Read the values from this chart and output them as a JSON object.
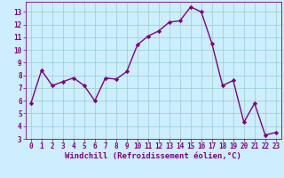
{
  "x": [
    0,
    1,
    2,
    3,
    4,
    5,
    6,
    7,
    8,
    9,
    10,
    11,
    12,
    13,
    14,
    15,
    16,
    17,
    18,
    19,
    20,
    21,
    22,
    23
  ],
  "y": [
    5.8,
    8.4,
    7.2,
    7.5,
    7.8,
    7.2,
    6.0,
    7.8,
    7.7,
    8.3,
    10.4,
    11.1,
    11.5,
    12.2,
    12.3,
    13.4,
    13.0,
    10.5,
    7.2,
    7.6,
    4.3,
    5.8,
    3.3,
    3.5
  ],
  "line_color": "#800080",
  "marker": "D",
  "marker_size": 2.2,
  "bg_color": "#cceeff",
  "grid_color": "#99cccc",
  "xlabel": "Windchill (Refroidissement éolien,°C)",
  "xlabel_color": "#800080",
  "xlim": [
    -0.5,
    23.5
  ],
  "ylim": [
    3,
    13.8
  ],
  "yticks": [
    3,
    4,
    5,
    6,
    7,
    8,
    9,
    10,
    11,
    12,
    13
  ],
  "xticks": [
    0,
    1,
    2,
    3,
    4,
    5,
    6,
    7,
    8,
    9,
    10,
    11,
    12,
    13,
    14,
    15,
    16,
    17,
    18,
    19,
    20,
    21,
    22,
    23
  ],
  "tick_color": "#800080",
  "tick_fontsize": 5.5,
  "xlabel_fontsize": 6.5,
  "linewidth": 1.0
}
